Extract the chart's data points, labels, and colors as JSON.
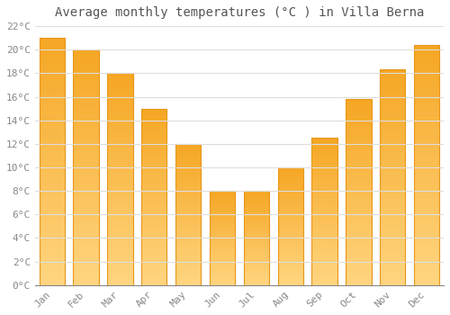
{
  "title": "Average monthly temperatures (°C ) in Villa Berna",
  "months": [
    "Jan",
    "Feb",
    "Mar",
    "Apr",
    "May",
    "Jun",
    "Jul",
    "Aug",
    "Sep",
    "Oct",
    "Nov",
    "Dec"
  ],
  "values": [
    21.0,
    20.0,
    18.0,
    15.0,
    12.0,
    8.0,
    8.0,
    10.0,
    12.5,
    15.8,
    18.3,
    20.4
  ],
  "bar_color_top": "#F5A623",
  "bar_color_bottom": "#FFD580",
  "bar_edge_color": "#E8961A",
  "ylim": [
    0,
    22
  ],
  "yticks": [
    0,
    2,
    4,
    6,
    8,
    10,
    12,
    14,
    16,
    18,
    20,
    22
  ],
  "ytick_labels": [
    "0°C",
    "2°C",
    "4°C",
    "6°C",
    "8°C",
    "10°C",
    "12°C",
    "14°C",
    "16°C",
    "18°C",
    "20°C",
    "22°C"
  ],
  "background_color": "#ffffff",
  "plot_bg_color": "#ffffff",
  "grid_color": "#dddddd",
  "title_fontsize": 10,
  "tick_fontsize": 8,
  "font_family": "monospace",
  "title_color": "#555555",
  "tick_color": "#888888"
}
